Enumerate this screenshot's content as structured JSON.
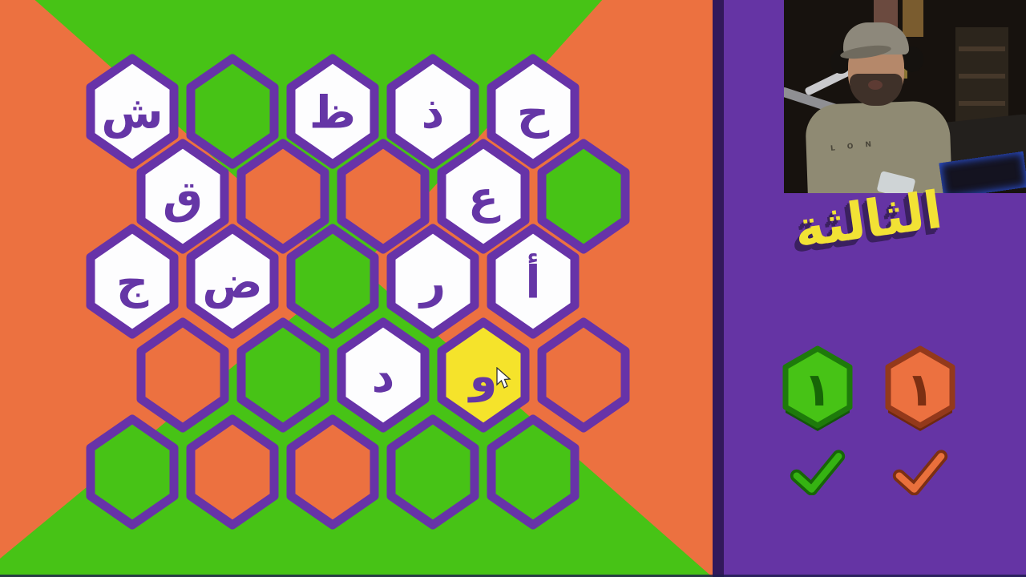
{
  "game": {
    "name": "arabic-letters-hex-game",
    "round_label": "الثالثة"
  },
  "colors": {
    "orange": "#EC7140",
    "green": "#47C316",
    "yellow": "#F5E32B",
    "white": "#FDFDFE",
    "hex_border": "#6733A8",
    "letter_purple": "#6536A6",
    "sidebar_purple": "#6534A4",
    "divider_dark_purple": "#32195B",
    "title_yellow": "#F2E235",
    "title_shadow": "#3B2060",
    "score_green": "#47C316",
    "score_green_dark": "#1E7A0B",
    "score_orange": "#EC7140",
    "score_orange_dark": "#7C2F12"
  },
  "board": {
    "rows": [
      {
        "cells": [
          {
            "letter": "ش",
            "state": "white"
          },
          {
            "letter": "",
            "state": "green"
          },
          {
            "letter": "ظ",
            "state": "white"
          },
          {
            "letter": "ذ",
            "state": "white"
          },
          {
            "letter": "ح",
            "state": "white"
          }
        ]
      },
      {
        "cells": [
          {
            "letter": "ق",
            "state": "white"
          },
          {
            "letter": "",
            "state": "orange"
          },
          {
            "letter": "",
            "state": "orange"
          },
          {
            "letter": "ع",
            "state": "white"
          },
          {
            "letter": "",
            "state": "green"
          }
        ]
      },
      {
        "cells": [
          {
            "letter": "ج",
            "state": "white"
          },
          {
            "letter": "ض",
            "state": "white"
          },
          {
            "letter": "",
            "state": "green"
          },
          {
            "letter": "ر",
            "state": "white"
          },
          {
            "letter": "أ",
            "state": "white"
          }
        ]
      },
      {
        "cells": [
          {
            "letter": "",
            "state": "orange"
          },
          {
            "letter": "",
            "state": "green"
          },
          {
            "letter": "د",
            "state": "white"
          },
          {
            "letter": "و",
            "state": "yellow"
          },
          {
            "letter": "",
            "state": "orange"
          }
        ]
      },
      {
        "cells": [
          {
            "letter": "",
            "state": "green"
          },
          {
            "letter": "",
            "state": "orange"
          },
          {
            "letter": "",
            "state": "orange"
          },
          {
            "letter": "",
            "state": "green"
          },
          {
            "letter": "",
            "state": "green"
          }
        ]
      }
    ]
  },
  "sidebar": {
    "round_label": "الثالثة",
    "scores": [
      {
        "team": "green",
        "value": "١",
        "checked": true
      },
      {
        "team": "orange",
        "value": "١",
        "checked": true
      }
    ]
  },
  "webcam": {
    "shirt_text": "L O N"
  }
}
